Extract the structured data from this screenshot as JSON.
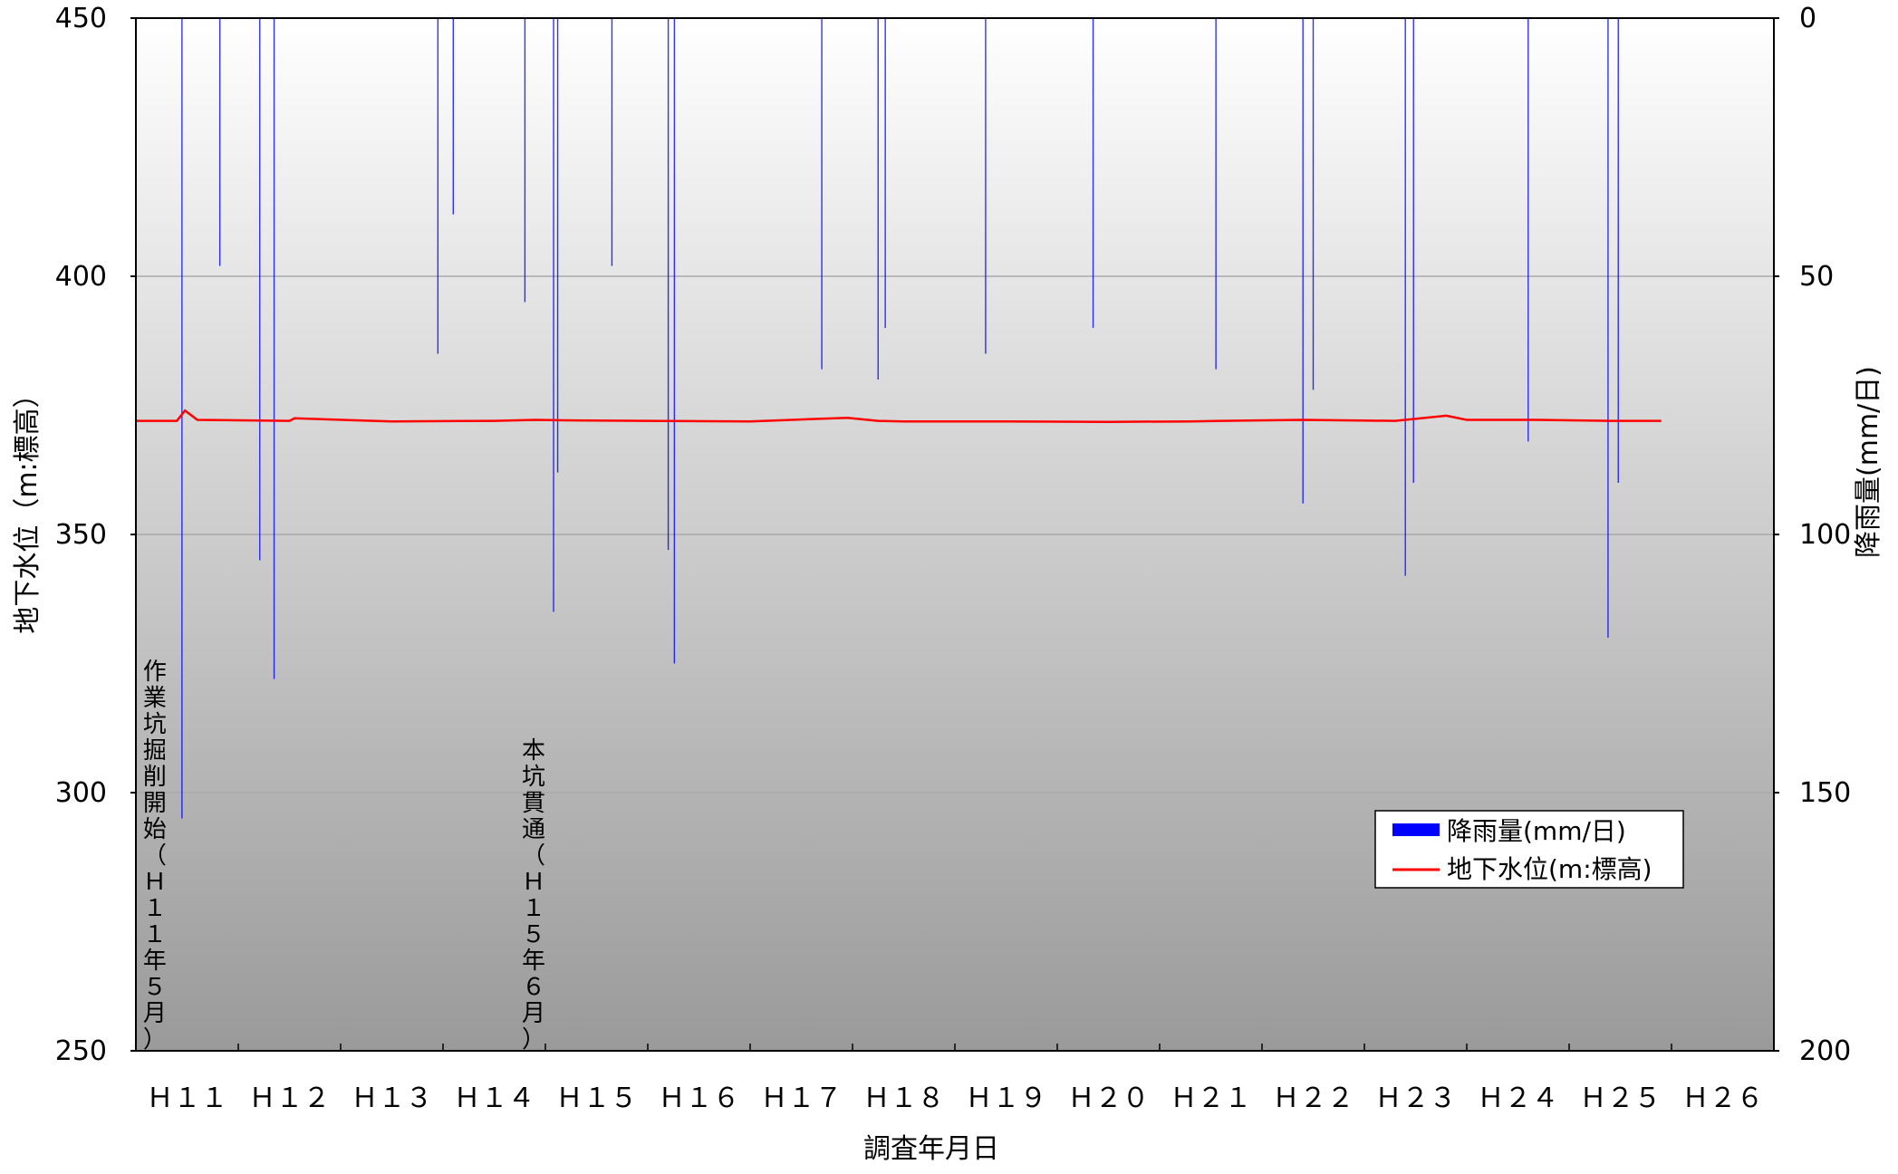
{
  "chart_data": {
    "type": "bar+line",
    "title": "",
    "xlabel": "調査年月日",
    "ylabel_left": "地下水位（m:標高）",
    "ylabel_right": "降雨量(mm/日)",
    "ylim_left": [
      250,
      450
    ],
    "ylim_right": [
      0,
      200
    ],
    "right_axis_inverted": true,
    "yticks_left": [
      "250",
      "300",
      "350",
      "400",
      "450"
    ],
    "yticks_right": [
      "200",
      "150",
      "100",
      "50",
      "0"
    ],
    "xticks": [
      "Ｈ１１",
      "Ｈ１２",
      "Ｈ１３",
      "Ｈ１４",
      "Ｈ１５",
      "Ｈ１６",
      "Ｈ１７",
      "Ｈ１８",
      "Ｈ１９",
      "Ｈ２０",
      "Ｈ２１",
      "Ｈ２２",
      "Ｈ２３",
      "Ｈ２４",
      "Ｈ２５",
      "Ｈ２６"
    ],
    "x_range_years": [
      11,
      27
    ],
    "legend": {
      "position": "right",
      "entries": [
        {
          "label": "降雨量(mm/日)",
          "color": "#0000ff",
          "kind": "bar"
        },
        {
          "label": "地下水位(m:標高)",
          "color": "#ff0000",
          "kind": "line"
        }
      ]
    },
    "grid": true,
    "annotations": [
      {
        "text": "作業坑掘削開始（Ｈ１１年５月）",
        "x": 11.3
      },
      {
        "text": "本坑貫通（Ｈ１５年６月）",
        "x": 15.0
      }
    ],
    "series": [
      {
        "name": "降雨量(mm/日)",
        "axis": "right",
        "color": "#0000ff",
        "type": "bar",
        "x": [
          11.45,
          11.82,
          12.21,
          12.35,
          13.95,
          14.1,
          14.8,
          15.08,
          15.12,
          15.65,
          16.2,
          16.26,
          17.7,
          18.25,
          18.32,
          19.3,
          20.35,
          21.55,
          22.4,
          22.5,
          23.4,
          23.48,
          24.6,
          25.38,
          25.48
        ],
        "values": [
          155,
          48,
          105,
          128,
          65,
          38,
          55,
          115,
          88,
          48,
          103,
          125,
          68,
          70,
          60,
          65,
          60,
          68,
          94,
          72,
          108,
          90,
          82,
          120,
          90
        ]
      },
      {
        "name": "地下水位(m:標高)",
        "axis": "left",
        "color": "#ff0000",
        "type": "line",
        "x": [
          11.0,
          11.4,
          11.48,
          11.6,
          12.5,
          12.55,
          13.5,
          14.5,
          14.9,
          15.2,
          16.0,
          17.0,
          17.95,
          18.25,
          18.5,
          19.5,
          20.5,
          21.3,
          21.6,
          22.4,
          23.3,
          23.8,
          24.0,
          24.7,
          25.4,
          25.9
        ],
        "values": [
          372.0,
          372.0,
          374.0,
          372.2,
          372.0,
          372.5,
          371.9,
          372.0,
          372.2,
          372.1,
          372.0,
          371.9,
          372.6,
          372.0,
          371.9,
          371.9,
          371.8,
          371.9,
          372.0,
          372.2,
          372.0,
          373.0,
          372.2,
          372.2,
          372.0,
          372.0
        ]
      }
    ]
  }
}
